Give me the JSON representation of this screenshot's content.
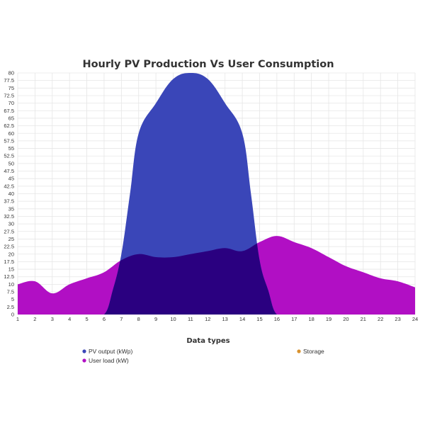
{
  "chart_data": {
    "type": "area",
    "title": "Hourly PV Production Vs User Consumption",
    "xlabel": "",
    "ylabel": "",
    "xlim": [
      1,
      24
    ],
    "ylim": [
      0,
      80
    ],
    "y_tick_step": 2.5,
    "x_ticks": [
      1,
      2,
      3,
      4,
      5,
      6,
      7,
      8,
      9,
      10,
      11,
      12,
      13,
      14,
      15,
      16,
      17,
      18,
      19,
      20,
      21,
      22,
      23,
      24
    ],
    "y_ticks": [
      "0",
      "2.5",
      "5",
      "7.5",
      "10",
      "12.5",
      "15",
      "17.5",
      "20",
      "22.5",
      "25",
      "27.5",
      "30",
      "32.5",
      "35",
      "37.5",
      "40",
      "42.5",
      "45",
      "47.5",
      "50",
      "52.5",
      "55",
      "57.5",
      "60",
      "62.5",
      "65",
      "67.5",
      "70",
      "72.5",
      "75",
      "77.5",
      "80"
    ],
    "grid": true,
    "legend": {
      "title": "Data types",
      "placement": "bottom",
      "items": [
        {
          "label": "PV output (kWp)",
          "color": "#3a46b8"
        },
        {
          "label": "Storage",
          "color": "#d9922e"
        },
        {
          "label": "User load (kW)",
          "color": "#b10fc4"
        }
      ]
    },
    "series": [
      {
        "name": "PV output (kWp)",
        "color": "#3a46b8",
        "x": [
          1,
          2,
          3,
          4,
          5,
          6,
          6.5,
          7,
          7.5,
          8,
          9,
          10,
          11,
          12,
          13,
          14,
          14.5,
          15,
          15.5,
          16,
          17,
          18,
          19,
          20,
          21,
          22,
          23,
          24
        ],
        "y": [
          0,
          0,
          0,
          0,
          0,
          0,
          8,
          20,
          40,
          60,
          70,
          78,
          80,
          78,
          70,
          60,
          40,
          18,
          8,
          0,
          0,
          0,
          0,
          0,
          0,
          0,
          0,
          0
        ]
      },
      {
        "name": "User load (kW)",
        "color": "#b10fc4",
        "x": [
          1,
          2,
          3,
          4,
          5,
          6,
          7,
          8,
          9,
          10,
          11,
          12,
          13,
          14,
          15,
          16,
          17,
          18,
          19,
          20,
          21,
          22,
          23,
          24
        ],
        "y": [
          10,
          11,
          7,
          10,
          12,
          14,
          18,
          20,
          19,
          19,
          20,
          21,
          22,
          21,
          24,
          26,
          24,
          22,
          19,
          16,
          14,
          12,
          11,
          9
        ]
      }
    ],
    "overlap_color": "#2a0080"
  }
}
